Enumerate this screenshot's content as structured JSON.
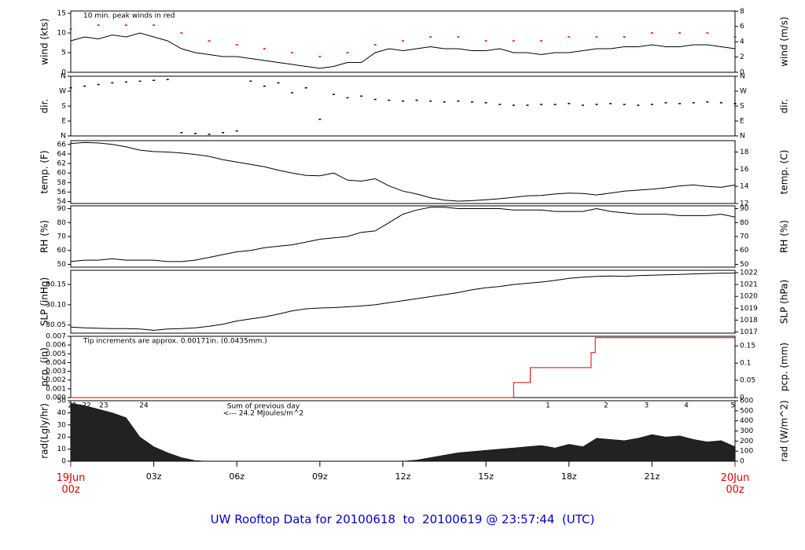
{
  "title": "UW Rooftop Data for 20100618  to  20100619 @ 23:57:44  (UTC)",
  "chart_data": [
    {
      "type": "line",
      "ylabel": "wind (kts)",
      "y2label": "wind (m/s)",
      "annotation": {
        "text": "10 min. peak winds in red",
        "color": "#e00000"
      },
      "xlim": [
        0,
        24
      ],
      "ylim": [
        0,
        15.6
      ],
      "yticks": [
        0,
        5,
        10,
        15
      ],
      "y2lim": [
        0,
        8.03
      ],
      "y2ticks": [
        0,
        2,
        4,
        6,
        8
      ],
      "x": [
        0,
        0.5,
        1,
        1.5,
        2,
        2.5,
        3,
        3.5,
        4,
        4.5,
        5,
        5.5,
        6,
        6.5,
        7,
        7.5,
        8,
        8.5,
        9,
        9.5,
        10,
        10.5,
        11,
        11.5,
        12,
        12.5,
        13,
        13.5,
        14,
        14.5,
        15,
        15.5,
        16,
        16.5,
        17,
        17.5,
        18,
        18.5,
        19,
        19.5,
        20,
        20.5,
        21,
        21.5,
        22,
        22.5,
        23,
        23.5,
        24
      ],
      "series": [
        {
          "type": "line",
          "color": "#000000",
          "values": [
            8,
            9,
            8.5,
            9.5,
            9,
            10,
            9,
            8,
            6,
            5,
            4.5,
            4,
            4,
            3.5,
            3,
            2.5,
            2,
            1.5,
            1,
            1.5,
            2.5,
            2.5,
            5,
            6,
            5.5,
            6,
            6.5,
            6,
            6,
            5.5,
            5.5,
            6,
            5,
            5,
            4.5,
            5,
            5,
            5.5,
            6,
            6,
            6.5,
            6.5,
            7,
            6.5,
            6.5,
            7,
            7,
            6.5,
            6
          ]
        },
        {
          "type": "scatter",
          "color": "#e00000",
          "x": [
            0,
            1,
            2,
            3,
            4,
            5,
            6,
            7,
            8,
            9,
            10,
            11,
            12,
            13,
            14,
            15,
            16,
            17,
            18,
            19,
            20,
            21,
            22,
            23,
            24
          ],
          "values": [
            11,
            12,
            12,
            12,
            10,
            8,
            7,
            6,
            5,
            4,
            5,
            7,
            8,
            9,
            9,
            8,
            8,
            8,
            9,
            9,
            9,
            10,
            10,
            10,
            9
          ]
        }
      ]
    },
    {
      "type": "scatter",
      "ylabel": "dir.",
      "y2label": "dir.",
      "xlim": [
        0,
        24
      ],
      "ylim": [
        0,
        360
      ],
      "yticks": [
        {
          "value": 0,
          "label": "N"
        },
        {
          "value": 90,
          "label": "E"
        },
        {
          "value": 180,
          "label": "S"
        },
        {
          "value": 270,
          "label": "W"
        },
        {
          "value": 360,
          "label": "N"
        }
      ],
      "y2lim": [
        0,
        360
      ],
      "y2ticks": [
        {
          "value": 0,
          "label": "N"
        },
        {
          "value": 90,
          "label": "E"
        },
        {
          "value": 180,
          "label": "S"
        },
        {
          "value": 270,
          "label": "W"
        },
        {
          "value": 360,
          "label": "N"
        }
      ],
      "x": [
        0,
        0.5,
        1,
        1.5,
        2,
        2.5,
        3,
        3.5,
        4,
        4.5,
        5,
        5.5,
        6,
        6.5,
        7,
        7.5,
        8,
        8.5,
        9,
        9.5,
        10,
        10.5,
        11,
        11.5,
        12,
        12.5,
        13,
        13.5,
        14,
        14.5,
        15,
        15.5,
        16,
        16.5,
        17,
        17.5,
        18,
        18.5,
        19,
        19.5,
        20,
        20.5,
        21,
        21.5,
        22,
        22.5,
        23,
        23.5,
        24
      ],
      "series": [
        {
          "type": "scatter",
          "color": "#000000",
          "values": [
            290,
            300,
            310,
            320,
            325,
            330,
            335,
            340,
            20,
            15,
            10,
            20,
            30,
            330,
            300,
            320,
            260,
            290,
            100,
            250,
            230,
            240,
            220,
            215,
            210,
            215,
            210,
            205,
            210,
            205,
            200,
            190,
            185,
            185,
            190,
            190,
            195,
            185,
            190,
            195,
            190,
            185,
            190,
            200,
            195,
            200,
            205,
            200,
            195
          ]
        }
      ]
    },
    {
      "type": "line",
      "ylabel": "temp. (F)",
      "y2label": "temp. (C)",
      "xlim": [
        0,
        24
      ],
      "ylim": [
        53.6,
        66.8
      ],
      "yticks": [
        54,
        56,
        58,
        60,
        62,
        64,
        66
      ],
      "y2lim": [
        12,
        19.33
      ],
      "y2ticks": [
        12,
        14,
        16,
        18
      ],
      "x": [
        0,
        0.5,
        1,
        1.5,
        2,
        2.5,
        3,
        3.5,
        4,
        4.5,
        5,
        5.5,
        6,
        6.5,
        7,
        7.5,
        8,
        8.5,
        9,
        9.5,
        10,
        10.5,
        11,
        11.5,
        12,
        12.5,
        13,
        13.5,
        14,
        14.5,
        15,
        15.5,
        16,
        16.5,
        17,
        17.5,
        18,
        18.5,
        19,
        19.5,
        20,
        20.5,
        21,
        21.5,
        22,
        22.5,
        23,
        23.5,
        24
      ],
      "series": [
        {
          "type": "line",
          "color": "#000000",
          "values": [
            66.2,
            66.4,
            66.3,
            66.0,
            65.5,
            64.8,
            64.5,
            64.4,
            64.2,
            63.9,
            63.5,
            62.8,
            62.3,
            61.8,
            61.3,
            60.6,
            60.0,
            59.5,
            59.4,
            60.0,
            58.5,
            58.3,
            58.8,
            57.3,
            56.2,
            55.6,
            54.8,
            54.3,
            54.1,
            54.2,
            54.4,
            54.6,
            54.9,
            55.2,
            55.3,
            55.6,
            55.8,
            55.7,
            55.4,
            55.8,
            56.2,
            56.4,
            56.6,
            56.9,
            57.3,
            57.5,
            57.2,
            57.0,
            57.5
          ]
        }
      ]
    },
    {
      "type": "line",
      "ylabel": "RH (%)",
      "y2label": "RH (%)",
      "xlim": [
        0,
        24
      ],
      "ylim": [
        48,
        92
      ],
      "yticks": [
        50,
        60,
        70,
        80,
        90
      ],
      "y2lim": [
        48,
        92
      ],
      "y2ticks": [
        50,
        60,
        70,
        80,
        90
      ],
      "x": [
        0,
        0.5,
        1,
        1.5,
        2,
        2.5,
        3,
        3.5,
        4,
        4.5,
        5,
        5.5,
        6,
        6.5,
        7,
        7.5,
        8,
        8.5,
        9,
        9.5,
        10,
        10.5,
        11,
        11.5,
        12,
        12.5,
        13,
        13.5,
        14,
        14.5,
        15,
        15.5,
        16,
        16.5,
        17,
        17.5,
        18,
        18.5,
        19,
        19.5,
        20,
        20.5,
        21,
        21.5,
        22,
        22.5,
        23,
        23.5,
        24
      ],
      "series": [
        {
          "type": "line",
          "color": "#000000",
          "values": [
            52,
            53,
            53,
            54,
            53,
            53,
            53,
            52,
            52,
            53,
            55,
            57,
            59,
            60,
            62,
            63,
            64,
            66,
            68,
            69,
            70,
            73,
            74,
            80,
            86,
            89,
            91,
            91,
            90,
            90,
            90,
            90,
            89,
            89,
            89,
            88,
            88,
            88,
            90,
            88,
            87,
            86,
            86,
            86,
            85,
            85,
            85,
            86,
            84
          ]
        }
      ]
    },
    {
      "type": "line",
      "ylabel": "SLP (inHg)",
      "y2label": "SLP (hPa)",
      "xlim": [
        0,
        24
      ],
      "ylim": [
        30.03,
        30.185
      ],
      "yticks": [
        {
          "value": 30.05,
          "label": "30.05"
        },
        {
          "value": 30.1,
          "label": "30.10"
        },
        {
          "value": 30.15,
          "label": "30.15"
        }
      ],
      "y2lim": [
        1016.9,
        1022.2
      ],
      "y2ticks": [
        1017,
        1018,
        1019,
        1020,
        1021,
        1022
      ],
      "x": [
        0,
        0.5,
        1,
        1.5,
        2,
        2.5,
        3,
        3.5,
        4,
        4.5,
        5,
        5.5,
        6,
        6.5,
        7,
        7.5,
        8,
        8.5,
        9,
        9.5,
        10,
        10.5,
        11,
        11.5,
        12,
        12.5,
        13,
        13.5,
        14,
        14.5,
        15,
        15.5,
        16,
        16.5,
        17,
        17.5,
        18,
        18.5,
        19,
        19.5,
        20,
        20.5,
        21,
        21.5,
        22,
        22.5,
        23,
        23.5,
        24
      ],
      "series": [
        {
          "type": "line",
          "color": "#000000",
          "values": [
            30.045,
            30.043,
            30.042,
            30.041,
            30.041,
            30.04,
            30.037,
            30.04,
            30.041,
            30.043,
            30.047,
            30.052,
            30.06,
            30.065,
            30.07,
            30.077,
            30.085,
            30.09,
            30.092,
            30.093,
            30.095,
            30.097,
            30.1,
            30.105,
            30.11,
            30.115,
            30.12,
            30.125,
            30.13,
            30.137,
            30.142,
            30.145,
            30.15,
            30.153,
            30.156,
            30.16,
            30.165,
            30.168,
            30.17,
            30.171,
            30.17,
            30.172,
            30.173,
            30.174,
            30.175,
            30.176,
            30.177,
            30.178,
            30.178
          ]
        }
      ]
    },
    {
      "type": "line",
      "ylabel": "pcp. (in)",
      "y2label": "pcp. (mm)",
      "annotation": {
        "text": "Tip increments are approx. 0.00171in. (0.0435mm.)",
        "color": "#e00000"
      },
      "xlim": [
        0,
        24
      ],
      "ylim": [
        0,
        0.007
      ],
      "yticks": [
        {
          "value": 0,
          "label": "0.000"
        },
        {
          "value": 0.001,
          "label": "0.001"
        },
        {
          "value": 0.002,
          "label": "0.002"
        },
        {
          "value": 0.003,
          "label": "0.003"
        },
        {
          "value": 0.004,
          "label": "0.004"
        },
        {
          "value": 0.005,
          "label": "0.005"
        },
        {
          "value": 0.006,
          "label": "0.006"
        },
        {
          "value": 0.007,
          "label": "0.007"
        }
      ],
      "y2lim": [
        0,
        0.1778
      ],
      "y2ticks": [
        0,
        0.05,
        0.1,
        0.15
      ],
      "x": [
        0,
        16,
        16,
        16.6,
        16.6,
        18.8,
        18.8,
        18.95,
        18.95,
        24
      ],
      "series": [
        {
          "type": "line",
          "color": "#e00000",
          "values": [
            0,
            0,
            0.00171,
            0.00171,
            0.00342,
            0.00342,
            0.00513,
            0.00513,
            0.00684,
            0.00684
          ]
        }
      ]
    },
    {
      "type": "area",
      "ylabel": "rad(Lgly/hr)",
      "y2label": "rad (W/m^2)",
      "annotations": {
        "color": "#9900cc",
        "lines": [
          "Sum of previous day",
          "<--- 24.2 MJoules/m^2"
        ]
      },
      "day_labels": [
        {
          "x": 0.06,
          "label": "21"
        },
        {
          "x": 0.57,
          "label": "22"
        },
        {
          "x": 1.19,
          "label": "23"
        },
        {
          "x": 2.64,
          "label": "24"
        },
        {
          "x": 17.24,
          "label": "1"
        },
        {
          "x": 19.34,
          "label": "2"
        },
        {
          "x": 20.8,
          "label": "3"
        },
        {
          "x": 22.24,
          "label": "4"
        },
        {
          "x": 23.92,
          "label": "5"
        }
      ],
      "xlim": [
        0,
        24
      ],
      "xticks": [
        {
          "value": 0,
          "label": "19Jun\n00z"
        },
        {
          "value": 3,
          "label": "03z"
        },
        {
          "value": 6,
          "label": "06z"
        },
        {
          "value": 9,
          "label": "09z"
        },
        {
          "value": 12,
          "label": "12z"
        },
        {
          "value": 15,
          "label": "15z"
        },
        {
          "value": 18,
          "label": "18z"
        },
        {
          "value": 21,
          "label": "21z"
        },
        {
          "value": 24,
          "label": "20Jun\n00z"
        }
      ],
      "ylim": [
        0,
        50
      ],
      "yticks": [
        0,
        10,
        20,
        30,
        40,
        50
      ],
      "y2lim": [
        0,
        600
      ],
      "y2ticks": [
        0,
        100,
        200,
        300,
        400,
        500,
        600
      ],
      "x": [
        0,
        0.5,
        1,
        1.5,
        2,
        2.5,
        3,
        3.5,
        4,
        4.5,
        5,
        5.5,
        6,
        6.5,
        7,
        7.5,
        8,
        8.5,
        9,
        9.5,
        10,
        10.5,
        11,
        11.5,
        12,
        12.5,
        13,
        13.5,
        14,
        14.5,
        15,
        15.5,
        16,
        16.5,
        17,
        17.5,
        18,
        18.5,
        19,
        19.5,
        20,
        20.5,
        21,
        21.5,
        22,
        22.5,
        23,
        23.5,
        24
      ],
      "series": [
        {
          "type": "area",
          "color": "#222222",
          "values": [
            48,
            46,
            43,
            40,
            36,
            20,
            12,
            7,
            3,
            0.5,
            0,
            0,
            0,
            0,
            0,
            0,
            0,
            0,
            0,
            0,
            0,
            0,
            0,
            0,
            0,
            1,
            3,
            5,
            7,
            8,
            9,
            10,
            11,
            12,
            13,
            11,
            14,
            12,
            19,
            18,
            17,
            19,
            22,
            20,
            21,
            18,
            16,
            17,
            12
          ]
        }
      ]
    }
  ]
}
